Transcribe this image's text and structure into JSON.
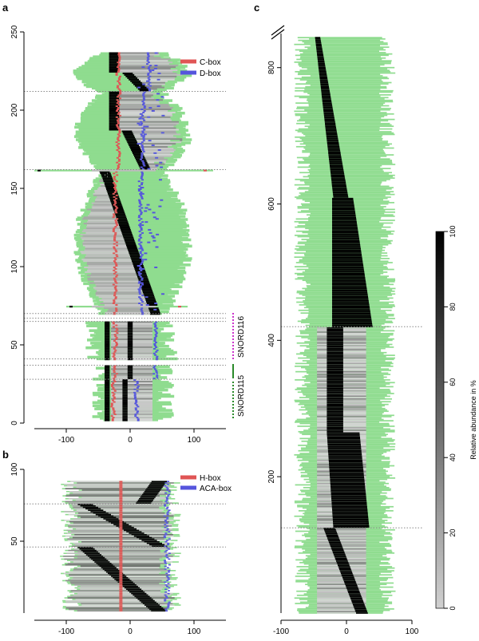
{
  "colors": {
    "read": "#8fdc8f",
    "cbox": "#e05555",
    "dbox": "#5555dd",
    "sep": "#888888",
    "snord116": "#cc33cc",
    "snord115": "#2a8a2a"
  },
  "chart_data": [
    {
      "panel": "a",
      "type": "heatmap",
      "xlim": [
        -150,
        150
      ],
      "ylim": [
        0,
        250
      ],
      "xticks": [
        -100,
        0,
        100
      ],
      "yticks": [
        0,
        50,
        100,
        150,
        200,
        250
      ],
      "legend": [
        {
          "label": "C-box",
          "color": "#e05555"
        },
        {
          "label": "D-box",
          "color": "#5555dd"
        }
      ],
      "legend_placement": "top-right",
      "separators_y": [
        212,
        162,
        70,
        67,
        65,
        41,
        37,
        28
      ],
      "annotations": [
        {
          "label": "SNORD116",
          "y_range": [
            41,
            70
          ],
          "color": "#cc33cc"
        },
        {
          "label": "SNORD115",
          "y_range": [
            0,
            37
          ],
          "color": "#2a8a2a"
        }
      ]
    },
    {
      "panel": "b",
      "type": "heatmap",
      "xlim": [
        -150,
        150
      ],
      "ylim": [
        0,
        100
      ],
      "xticks": [
        -100,
        0,
        100
      ],
      "yticks": [
        50,
        100
      ],
      "legend": [
        {
          "label": "H-box",
          "color": "#e05555"
        },
        {
          "label": "ACA-box",
          "color": "#5555dd"
        }
      ],
      "legend_placement": "top-right",
      "separators_y": [
        76,
        46
      ]
    },
    {
      "panel": "c",
      "type": "heatmap",
      "xlim": [
        -100,
        100
      ],
      "ylim": [
        0,
        850
      ],
      "xticks": [
        -100,
        0,
        100
      ],
      "yticks": [
        200,
        400,
        600,
        800
      ],
      "separators_y": [
        420,
        125
      ],
      "colorbar": {
        "label": "Relative abundance in %",
        "range": [
          0,
          100
        ],
        "ticks": [
          0,
          20,
          40,
          60,
          80,
          100
        ],
        "low_color": "#d0d0d0",
        "high_color": "#000000"
      }
    }
  ],
  "panel_labels": {
    "a": "a",
    "b": "b",
    "c": "c"
  },
  "text": {
    "a_tick_x": [
      "-100",
      "0",
      "100"
    ],
    "a_tick_y": [
      "0",
      "50",
      "100",
      "150",
      "200",
      "250"
    ],
    "b_tick_x": [
      "-100",
      "0",
      "100"
    ],
    "b_tick_y": [
      "50",
      "100"
    ],
    "c_tick_x": [
      "-100",
      "0",
      "100"
    ],
    "c_tick_y": [
      "200",
      "400",
      "600",
      "800"
    ],
    "cb_ticks": [
      "0",
      "20",
      "40",
      "60",
      "80",
      "100"
    ],
    "cb_label": "Relative abundance in %",
    "leg_a1": "C-box",
    "leg_a2": "D-box",
    "leg_b1": "H-box",
    "leg_b2": "ACA-box",
    "snord116": "SNORD116",
    "snord115": "SNORD115"
  }
}
